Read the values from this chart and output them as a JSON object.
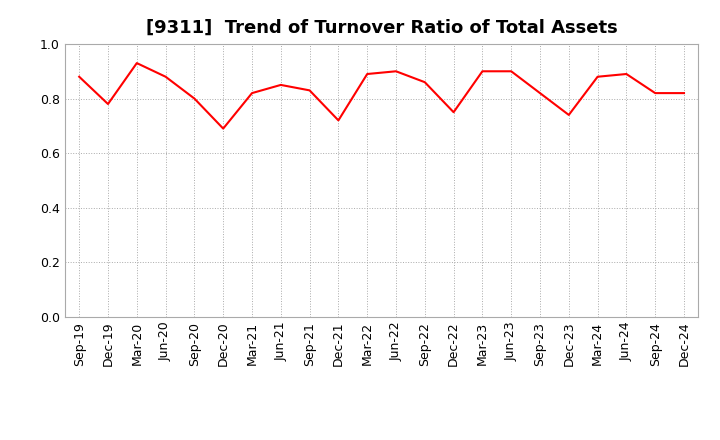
{
  "title": "[9311]  Trend of Turnover Ratio of Total Assets",
  "labels": [
    "Sep-19",
    "Dec-19",
    "Mar-20",
    "Jun-20",
    "Sep-20",
    "Dec-20",
    "Mar-21",
    "Jun-21",
    "Sep-21",
    "Dec-21",
    "Mar-22",
    "Jun-22",
    "Sep-22",
    "Dec-22",
    "Mar-23",
    "Jun-23",
    "Sep-23",
    "Dec-23",
    "Mar-24",
    "Jun-24",
    "Sep-24",
    "Dec-24"
  ],
  "values": [
    0.88,
    0.78,
    0.93,
    0.88,
    0.8,
    0.69,
    0.82,
    0.85,
    0.83,
    0.72,
    0.89,
    0.9,
    0.86,
    0.75,
    0.9,
    0.9,
    0.82,
    0.74,
    0.88,
    0.89,
    0.82,
    0.82
  ],
  "line_color": "#FF0000",
  "background_color": "#FFFFFF",
  "grid_color": "#AAAAAA",
  "title_fontsize": 13,
  "tick_fontsize": 9,
  "ylim": [
    0.0,
    1.0
  ],
  "yticks": [
    0.0,
    0.2,
    0.4,
    0.6,
    0.8,
    1.0
  ]
}
